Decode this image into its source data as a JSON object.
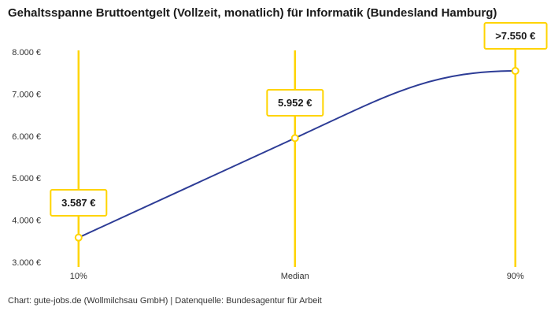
{
  "title": "Gehaltsspanne Bruttoentgelt (Vollzeit, monatlich) für Informatik (Bundesland Hamburg)",
  "footer": "Chart: gute-jobs.de (Wollmilchsau GmbH) | Datenquelle: Bundesagentur für Arbeit",
  "colors": {
    "accent_yellow": "#ffd400",
    "line_blue": "#2d3c96",
    "text_dark": "#1a1a1a",
    "text_muted": "#333333",
    "background": "#ffffff"
  },
  "chart_data": {
    "type": "line",
    "title": "Gehaltsspanne Bruttoentgelt (Vollzeit, monatlich) für Informatik (Bundesland Hamburg)",
    "categories": [
      "10%",
      "Median",
      "90%"
    ],
    "values": [
      3587,
      5952,
      7550
    ],
    "point_labels": [
      "3.587 €",
      "5.952 €",
      ">7.550 €"
    ],
    "xlabel": "",
    "ylabel": "",
    "ylim": [
      3000,
      8000
    ],
    "y_ticks": [
      3000,
      4000,
      5000,
      6000,
      7000,
      8000
    ],
    "y_tick_labels": [
      "3.000 €",
      "4.000 €",
      "5.000 €",
      "6.000 €",
      "7.000 €",
      "8.000 €"
    ],
    "grid": false,
    "legend": "none",
    "annotations": [
      "Vertical yellow marker line at each percentile position",
      "White value callout boxes with yellow border above each data point",
      "Curve flattens (plateau) approaching the 90% percentile"
    ]
  }
}
